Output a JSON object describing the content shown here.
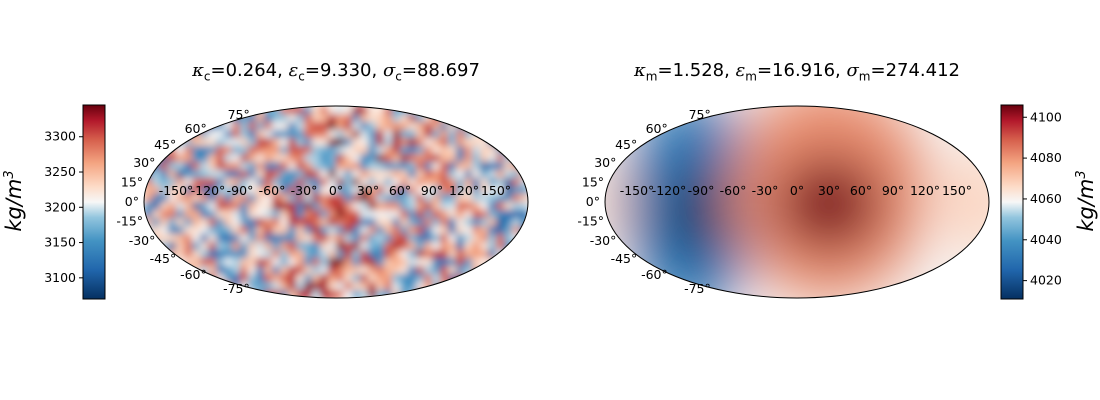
{
  "chart_data": [
    {
      "type": "heatmap",
      "projection": "mollweide",
      "title": {
        "kappa": "0.264",
        "epsilon": "9.330",
        "sigma": "88.697",
        "subscript": "c"
      },
      "field_pattern": "small-scale random density anomalies, warmer (orange) toward the center longitudes",
      "colorbar": {
        "label": "kg/m",
        "label_exp": "3",
        "min": 3070,
        "max": 3345,
        "ticks": [
          "3100",
          "3150",
          "3200",
          "3250",
          "3300"
        ],
        "tick_values": [
          3100,
          3150,
          3200,
          3250,
          3300
        ],
        "side": "left"
      },
      "lon_ticks": [
        "-150°",
        "-120°",
        "-90°",
        "-60°",
        "-30°",
        "0°",
        "30°",
        "60°",
        "90°",
        "120°",
        "150°"
      ],
      "lon_values": [
        -150,
        -120,
        -90,
        -60,
        -30,
        0,
        30,
        60,
        90,
        120,
        150
      ],
      "lat_ticks": [
        "-75°",
        "-60°",
        "-45°",
        "-30°",
        "-15°",
        "0°",
        "15°",
        "30°",
        "45°",
        "60°",
        "75°"
      ],
      "lat_values": [
        -75,
        -60,
        -45,
        -30,
        -15,
        0,
        15,
        30,
        45,
        60,
        75
      ]
    },
    {
      "type": "heatmap",
      "projection": "mollweide",
      "title": {
        "kappa": "1.528",
        "epsilon": "16.916",
        "sigma": "274.412",
        "subscript": "m"
      },
      "field_pattern": "large-scale: low (blue) centered near lon -100°, high (orange) centered near lon 30°",
      "colorbar": {
        "label": "kg/m",
        "label_exp": "3",
        "min": 4011,
        "max": 4106,
        "ticks": [
          "4020",
          "4040",
          "4060",
          "4080",
          "4100"
        ],
        "tick_values": [
          4020,
          4040,
          4060,
          4080,
          4100
        ],
        "side": "right"
      },
      "lon_ticks": [
        "-150°",
        "-120°",
        "-90°",
        "-60°",
        "-30°",
        "0°",
        "30°",
        "60°",
        "90°",
        "120°",
        "150°"
      ],
      "lon_values": [
        -150,
        -120,
        -90,
        -60,
        -30,
        0,
        30,
        60,
        90,
        120,
        150
      ],
      "lat_ticks": [
        "-75°",
        "-60°",
        "-45°",
        "-30°",
        "-15°",
        "0°",
        "15°",
        "30°",
        "45°",
        "60°",
        "75°"
      ],
      "lat_values": [
        -75,
        -60,
        -45,
        -30,
        -15,
        0,
        15,
        30,
        45,
        60,
        75
      ]
    }
  ],
  "colors": {
    "low": "#053061",
    "mid": "#ffffff",
    "high": "#67000d"
  }
}
